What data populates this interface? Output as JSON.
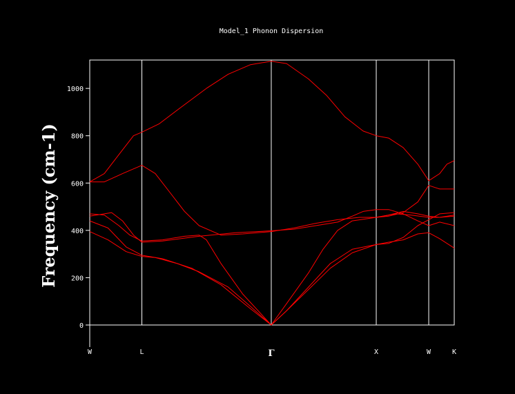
{
  "chart_data": {
    "type": "line",
    "title": "Model_1 Phonon Dispersion",
    "xlabel": "",
    "ylabel": "Frequency (cm-1)",
    "ylim": [
      -95,
      1120
    ],
    "yticks": [
      0,
      200,
      400,
      600,
      800,
      1000
    ],
    "xlim": [
      0,
      1
    ],
    "high_symmetry_points": [
      {
        "label": "W",
        "x": 0.0
      },
      {
        "label": "L",
        "x": 0.143
      },
      {
        "label": "Γ",
        "x": 0.498
      },
      {
        "label": "X",
        "x": 0.786
      },
      {
        "label": "W",
        "x": 0.93
      },
      {
        "label": "K",
        "x": 1.0
      }
    ],
    "line_color": "#ff0000",
    "grid_color": "#ffffff",
    "series": [
      {
        "values": [
          [
            0,
            605
          ],
          [
            0.04,
            640
          ],
          [
            0.08,
            720
          ],
          [
            0.12,
            800
          ],
          [
            0.143,
            815
          ],
          [
            0.19,
            850
          ],
          [
            0.25,
            920
          ],
          [
            0.32,
            1000
          ],
          [
            0.38,
            1060
          ],
          [
            0.44,
            1100
          ],
          [
            0.498,
            1115
          ],
          [
            0.54,
            1105
          ],
          [
            0.6,
            1040
          ],
          [
            0.65,
            970
          ],
          [
            0.7,
            880
          ],
          [
            0.75,
            820
          ],
          [
            0.786,
            800
          ],
          [
            0.82,
            790
          ],
          [
            0.86,
            750
          ],
          [
            0.9,
            680
          ],
          [
            0.93,
            610
          ],
          [
            0.96,
            640
          ],
          [
            0.98,
            680
          ],
          [
            1.0,
            695
          ]
        ]
      },
      {
        "values": [
          [
            0,
            605
          ],
          [
            0.04,
            605
          ],
          [
            0.09,
            640
          ],
          [
            0.143,
            675
          ],
          [
            0.18,
            640
          ],
          [
            0.22,
            560
          ],
          [
            0.26,
            480
          ],
          [
            0.3,
            420
          ],
          [
            0.36,
            380
          ],
          [
            0.42,
            385
          ],
          [
            0.498,
            395
          ],
          [
            0.56,
            410
          ],
          [
            0.62,
            430
          ],
          [
            0.68,
            445
          ],
          [
            0.74,
            455
          ],
          [
            0.786,
            455
          ],
          [
            0.84,
            470
          ],
          [
            0.88,
            465
          ],
          [
            0.93,
            455
          ],
          [
            0.96,
            455
          ],
          [
            1.0,
            460
          ]
        ]
      },
      {
        "values": [
          [
            0,
            470
          ],
          [
            0.04,
            465
          ],
          [
            0.08,
            420
          ],
          [
            0.11,
            380
          ],
          [
            0.143,
            355
          ],
          [
            0.2,
            360
          ],
          [
            0.26,
            375
          ],
          [
            0.3,
            380
          ],
          [
            0.32,
            360
          ],
          [
            0.36,
            260
          ],
          [
            0.42,
            130
          ],
          [
            0.498,
            0
          ],
          [
            0.54,
            90
          ],
          [
            0.6,
            220
          ],
          [
            0.64,
            320
          ],
          [
            0.68,
            400
          ],
          [
            0.72,
            440
          ],
          [
            0.786,
            455
          ],
          [
            0.82,
            465
          ],
          [
            0.86,
            480
          ],
          [
            0.9,
            470
          ],
          [
            0.93,
            460
          ],
          [
            0.96,
            455
          ],
          [
            1.0,
            465
          ]
        ]
      },
      {
        "values": [
          [
            0,
            460
          ],
          [
            0.04,
            470
          ],
          [
            0.06,
            475
          ],
          [
            0.09,
            440
          ],
          [
            0.12,
            380
          ],
          [
            0.143,
            350
          ],
          [
            0.2,
            355
          ],
          [
            0.3,
            375
          ],
          [
            0.4,
            390
          ],
          [
            0.498,
            398
          ],
          [
            0.56,
            405
          ],
          [
            0.62,
            420
          ],
          [
            0.68,
            435
          ],
          [
            0.72,
            460
          ],
          [
            0.75,
            480
          ],
          [
            0.786,
            488
          ],
          [
            0.82,
            488
          ],
          [
            0.86,
            470
          ],
          [
            0.9,
            440
          ],
          [
            0.93,
            420
          ],
          [
            0.96,
            435
          ],
          [
            1.0,
            420
          ]
        ]
      },
      {
        "values": [
          [
            0,
            440
          ],
          [
            0.05,
            410
          ],
          [
            0.1,
            330
          ],
          [
            0.143,
            295
          ],
          [
            0.2,
            280
          ],
          [
            0.28,
            240
          ],
          [
            0.36,
            170
          ],
          [
            0.44,
            70
          ],
          [
            0.498,
            0
          ],
          [
            0.54,
            60
          ],
          [
            0.6,
            160
          ],
          [
            0.66,
            260
          ],
          [
            0.72,
            320
          ],
          [
            0.786,
            340
          ],
          [
            0.82,
            345
          ],
          [
            0.86,
            370
          ],
          [
            0.9,
            420
          ],
          [
            0.93,
            445
          ],
          [
            0.96,
            470
          ],
          [
            1.0,
            475
          ]
        ]
      },
      {
        "values": [
          [
            0,
            395
          ],
          [
            0.05,
            360
          ],
          [
            0.1,
            310
          ],
          [
            0.143,
            290
          ],
          [
            0.18,
            285
          ],
          [
            0.24,
            260
          ],
          [
            0.3,
            225
          ],
          [
            0.38,
            160
          ],
          [
            0.44,
            80
          ],
          [
            0.498,
            0
          ],
          [
            0.54,
            60
          ],
          [
            0.6,
            150
          ],
          [
            0.66,
            240
          ],
          [
            0.72,
            305
          ],
          [
            0.786,
            340
          ],
          [
            0.82,
            350
          ],
          [
            0.86,
            360
          ],
          [
            0.9,
            385
          ],
          [
            0.93,
            390
          ],
          [
            0.96,
            365
          ],
          [
            1.0,
            325
          ]
        ]
      },
      {
        "values": [
          [
            0.786,
            455
          ],
          [
            0.82,
            460
          ],
          [
            0.86,
            475
          ],
          [
            0.9,
            520
          ],
          [
            0.93,
            590
          ],
          [
            0.96,
            575
          ],
          [
            1.0,
            575
          ]
        ]
      }
    ]
  }
}
